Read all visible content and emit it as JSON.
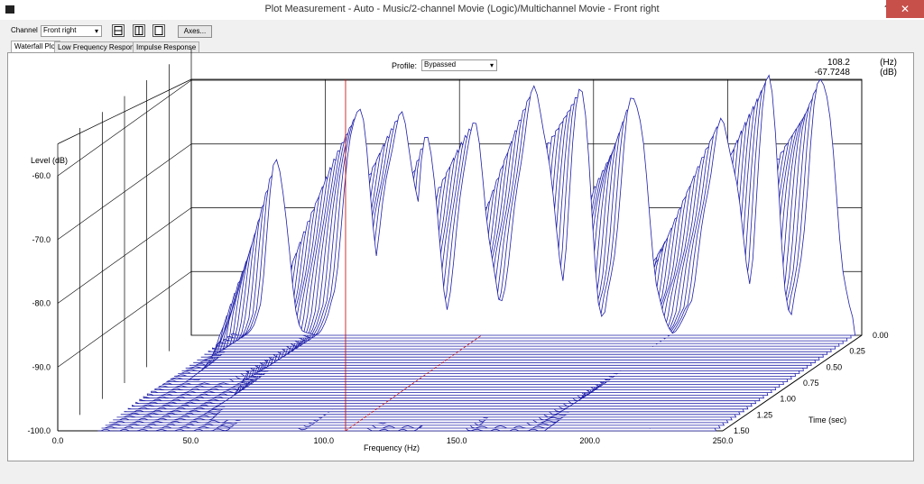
{
  "window": {
    "title": "Plot Measurement - Auto - Music/2-channel Movie (Logic)/Multichannel Movie - Front right",
    "help_glyph": "?",
    "close_glyph": "✕"
  },
  "toolbar": {
    "channel_label": "Channel",
    "channel_value": "Front right",
    "axes_button": "Axes..."
  },
  "tabs": [
    {
      "label": "Waterfall Plot",
      "active": true
    },
    {
      "label": "Low Frequency Response",
      "active": false
    },
    {
      "label": "Impulse Response",
      "active": false
    }
  ],
  "profile": {
    "label": "Profile:",
    "value": "Bypassed"
  },
  "readout": {
    "freq": "108.2",
    "freq_unit": "(Hz)",
    "level": "-67.7248",
    "level_unit": "(dB)"
  },
  "colors": {
    "trace": "#1e1ea8",
    "grid": "#000000",
    "cursor": "#c80000"
  },
  "chart_data": {
    "type": "waterfall",
    "xlabel": "Frequency (Hz)",
    "ylabel": "Level (dB)",
    "zlabel": "Time (sec)",
    "x_ticks": [
      "0.0",
      "50.0",
      "100.0",
      "150.0",
      "200.0",
      "250.0"
    ],
    "y_ticks": [
      "-60.0",
      "-70.0",
      "-80.0",
      "-90.0",
      "-100.0"
    ],
    "z_ticks": [
      "0.00",
      "0.25",
      "0.50",
      "0.75",
      "1.00",
      "1.25",
      "1.50"
    ],
    "xlim": [
      0,
      250
    ],
    "ylim": [
      -100,
      -55
    ],
    "zlim": [
      0,
      1.5
    ],
    "cursor_frequency": 108.2,
    "slices": 36,
    "peaks_hz": [
      32,
      62,
      78,
      88,
      105,
      128,
      145,
      165,
      198,
      215,
      235
    ],
    "peaks_db": [
      -72,
      -64,
      -66,
      -68,
      -67,
      -62,
      -60,
      -62,
      -67,
      -58,
      -59
    ]
  }
}
